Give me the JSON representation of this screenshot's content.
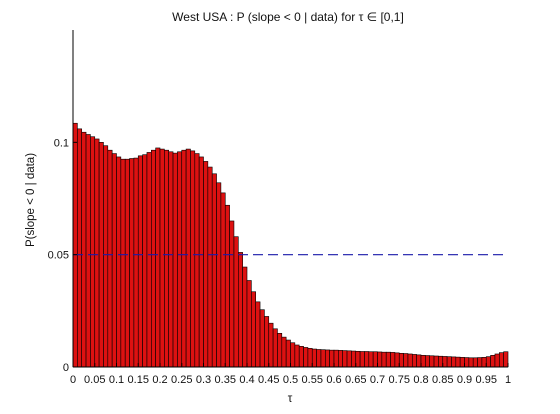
{
  "chart_data": {
    "type": "bar",
    "title": "West USA : P (slope < 0 | data) for τ ∈ [0,1]",
    "xlabel": "τ",
    "ylabel": "P(slope < 0 | data)",
    "xlim": [
      0,
      1
    ],
    "ylim": [
      0,
      0.15
    ],
    "xticks": [
      "0",
      "0.05",
      "0.1",
      "0.15",
      "0.2",
      "0.25",
      "0.3",
      "0.35",
      "0.4",
      "0.45",
      "0.5",
      "0.55",
      "0.6",
      "0.65",
      "0.7",
      "0.75",
      "0.8",
      "0.85",
      "0.9",
      "0.95",
      "1"
    ],
    "yticks": [
      "0",
      "0.05",
      "0.1"
    ],
    "bar_color": "#dd1111",
    "bar_edge_color": "#000000",
    "bin_width": 0.01,
    "reference_line": {
      "y": 0.05,
      "style": "dashed",
      "color": "#1a1aaa"
    },
    "grid": false,
    "x": [
      0.005,
      0.015,
      0.025,
      0.035,
      0.045,
      0.055,
      0.065,
      0.075,
      0.085,
      0.095,
      0.105,
      0.115,
      0.125,
      0.135,
      0.145,
      0.155,
      0.165,
      0.175,
      0.185,
      0.195,
      0.205,
      0.215,
      0.225,
      0.235,
      0.245,
      0.255,
      0.265,
      0.275,
      0.285,
      0.295,
      0.305,
      0.315,
      0.325,
      0.335,
      0.345,
      0.355,
      0.365,
      0.375,
      0.385,
      0.395,
      0.405,
      0.415,
      0.425,
      0.435,
      0.445,
      0.455,
      0.465,
      0.475,
      0.485,
      0.495,
      0.505,
      0.515,
      0.525,
      0.535,
      0.545,
      0.555,
      0.565,
      0.575,
      0.585,
      0.595,
      0.605,
      0.615,
      0.625,
      0.635,
      0.645,
      0.655,
      0.665,
      0.675,
      0.685,
      0.695,
      0.705,
      0.715,
      0.725,
      0.735,
      0.745,
      0.755,
      0.765,
      0.775,
      0.785,
      0.795,
      0.805,
      0.815,
      0.825,
      0.835,
      0.845,
      0.855,
      0.865,
      0.875,
      0.885,
      0.895,
      0.905,
      0.915,
      0.925,
      0.935,
      0.945,
      0.955,
      0.965,
      0.975,
      0.985,
      0.995
    ],
    "values": [
      0.1085,
      0.106,
      0.1045,
      0.1035,
      0.1025,
      0.1015,
      0.1,
      0.0985,
      0.0965,
      0.095,
      0.0935,
      0.0925,
      0.0925,
      0.0928,
      0.093,
      0.094,
      0.0945,
      0.0955,
      0.0965,
      0.0975,
      0.097,
      0.0965,
      0.0958,
      0.0952,
      0.0958,
      0.0965,
      0.097,
      0.0962,
      0.095,
      0.0935,
      0.0915,
      0.089,
      0.086,
      0.082,
      0.0775,
      0.072,
      0.065,
      0.058,
      0.051,
      0.0445,
      0.0385,
      0.0335,
      0.029,
      0.0255,
      0.0225,
      0.0195,
      0.017,
      0.015,
      0.0133,
      0.012,
      0.0108,
      0.0098,
      0.0092,
      0.0087,
      0.0083,
      0.008,
      0.0078,
      0.0077,
      0.0076,
      0.0075,
      0.0075,
      0.0074,
      0.0073,
      0.0072,
      0.0071,
      0.007,
      0.0069,
      0.0069,
      0.0068,
      0.0068,
      0.0067,
      0.0066,
      0.0066,
      0.0065,
      0.0063,
      0.0061,
      0.006,
      0.0058,
      0.0056,
      0.0054,
      0.0052,
      0.0051,
      0.005,
      0.0049,
      0.0048,
      0.0047,
      0.0046,
      0.0045,
      0.0044,
      0.0043,
      0.0042,
      0.0041,
      0.0041,
      0.0042,
      0.0043,
      0.0046,
      0.0052,
      0.0058,
      0.0064,
      0.0068
    ]
  }
}
